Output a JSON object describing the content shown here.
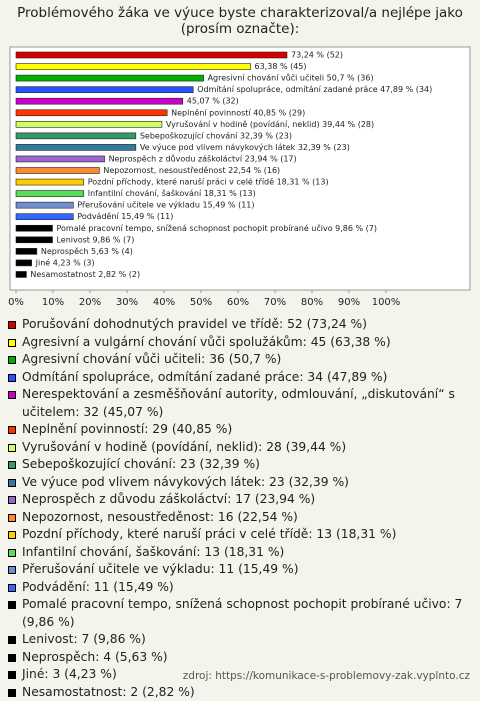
{
  "chart_data": {
    "type": "hbar",
    "title": [
      "Problémového žáka ve výuce byste charakterizoval/a nejlépe jako",
      "(prosím označte):"
    ],
    "xlim": [
      0,
      100
    ],
    "xticks": [
      {
        "value": 0,
        "label": "0%"
      },
      {
        "value": 10,
        "label": "10%"
      },
      {
        "value": 20,
        "label": "20%"
      },
      {
        "value": 30,
        "label": "30%"
      },
      {
        "value": 40,
        "label": "40%"
      },
      {
        "value": 50,
        "label": "50%"
      },
      {
        "value": 60,
        "label": "60%"
      },
      {
        "value": 70,
        "label": "70%"
      },
      {
        "value": 80,
        "label": "80%"
      },
      {
        "value": 90,
        "label": "90%"
      },
      {
        "value": 100,
        "label": "100%"
      }
    ],
    "values": [
      73.24,
      63.38,
      50.7,
      47.89,
      45.07,
      40.85,
      39.44,
      32.39,
      32.39,
      23.94,
      22.54,
      18.31,
      18.31,
      15.49,
      15.49,
      9.86,
      9.86,
      5.63,
      4.23,
      2.82
    ],
    "value_labels": [
      "73,24 % (52)",
      "63,38 % (45)",
      "Agresivní chování vůči učiteli 50,7 % (36)",
      "Odmítání spolupráce, odmítání zadané práce 47,89 % (34)",
      "45,07 % (32)",
      "Neplnění povinností 40,85 % (29)",
      "Vyrušování v hodině (povídání, neklid) 39,44 % (28)",
      "Sebepoškozující chování 32,39 % (23)",
      "Ve výuce pod vlivem návykových látek 32,39 % (23)",
      "Neprospěch z důvodu záškoláctví 23,94 % (17)",
      "Nepozornost, nesoustředěnost 22,54 % (16)",
      "Pozdní příchody, které naruší práci v celé třídě 18,31 % (13)",
      "Infantilní chování, šaškování 18,31 % (13)",
      "Přerušování učitele ve výkladu 15,49 % (11)",
      "Podvádění 15,49 % (11)",
      "Pomalé pracovní tempo, snížená schopnost pochopit probírané učivo 9,86 % (7)",
      "Lenivost 9,86 % (7)",
      "Neprospěch 5,63 % (4)",
      "Jiné 4,23 % (3)",
      "Nesamostatnost 2,82 % (2)"
    ],
    "legend_labels": [
      "Porušování dohodnutých pravidel ve třídě: 52 (73,24 %)",
      "Agresivní a vulgární chování vůči spolužákům: 45 (63,38 %)",
      "Agresivní chování vůči učiteli: 36 (50,7 %)",
      "Odmítání spolupráce, odmítání zadané práce: 34 (47,89 %)",
      "Nerespektování a zesměšňování autority, odmlouvání, „diskutování“ s učitelem: 32 (45,07 %)",
      "Neplnění povinností: 29 (40,85 %)",
      "Vyrušování v hodině (povídání, neklid): 28 (39,44 %)",
      "Sebepoškozující chování: 23 (32,39 %)",
      "Ve výuce pod vlivem návykových látek: 23 (32,39 %)",
      "Neprospěch z důvodu záškoláctví: 17 (23,94 %)",
      "Nepozornost, nesoustředěnost: 16 (22,54 %)",
      "Pozdní příchody, které naruší práci v celé třídě: 13 (18,31 %)",
      "Infantilní chování, šaškování: 13 (18,31 %)",
      "Přerušování učitele ve výkladu: 11 (15,49 %)",
      "Podvádění: 11 (15,49 %)",
      "Pomalé pracovní tempo, snížená schopnost pochopit probírané učivo: 7 (9,86 %)",
      "Lenivost: 7 (9,86 %)",
      "Neprospěch: 4 (5,63 %)",
      "Jiné: 3 (4,23 %)",
      "Nesamostatnost: 2 (2,82 %)"
    ],
    "colors": [
      "#d40000",
      "#ffff00",
      "#00b000",
      "#2255ff",
      "#cc00cc",
      "#ff3300",
      "#ccff66",
      "#339966",
      "#2f7a9e",
      "#9966cc",
      "#ff8833",
      "#ffcc00",
      "#55dd55",
      "#6f8fd0",
      "#3366ff",
      "#000000",
      "#000000",
      "#000000",
      "#000000",
      "#000000"
    ]
  },
  "source": "zdroj: https://komunikace-s-problemovy-zak.vyplnto.cz"
}
